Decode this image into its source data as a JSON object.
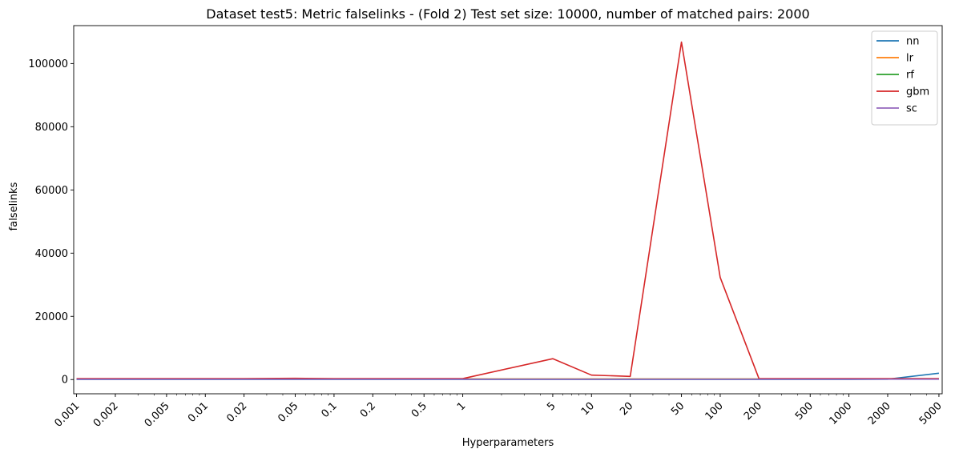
{
  "chart_data": {
    "type": "line",
    "title": "Dataset test5: Metric falselinks - (Fold 2) Test set size: 10000, number of matched pairs: 2000",
    "xlabel": "Hyperparameters",
    "ylabel": "falselinks",
    "x_scale": "log",
    "xlim": [
      0.00095,
      5300
    ],
    "ylim": [
      -4500,
      112000
    ],
    "x": [
      0.001,
      0.002,
      0.005,
      0.01,
      0.02,
      0.05,
      0.1,
      0.2,
      0.5,
      1,
      5,
      10,
      20,
      50,
      100,
      200,
      500,
      1000,
      2000,
      5000
    ],
    "x_tick_labels": [
      "0.001",
      "0.002",
      "0.005",
      "0.01",
      "0.02",
      "0.05",
      "0.1",
      "0.2",
      "0.5",
      "1",
      "5",
      "10",
      "20",
      "50",
      "100",
      "200",
      "500",
      "1000",
      "2000",
      "5000"
    ],
    "y_ticks": [
      0,
      20000,
      40000,
      60000,
      80000,
      100000
    ],
    "y_tick_labels": [
      "0",
      "20000",
      "40000",
      "60000",
      "80000",
      "100000"
    ],
    "legend_position": "top-right",
    "grid": false,
    "series": [
      {
        "name": "nn",
        "color": "#1f77b4",
        "values": [
          50,
          50,
          50,
          50,
          50,
          50,
          50,
          50,
          50,
          50,
          50,
          50,
          50,
          50,
          50,
          50,
          50,
          50,
          100,
          2000
        ]
      },
      {
        "name": "lr",
        "color": "#ff7f0e",
        "values": [
          200,
          200,
          200,
          200,
          200,
          200,
          200,
          200,
          200,
          200,
          200,
          200,
          200,
          200,
          200,
          200,
          200,
          200,
          200,
          200
        ]
      },
      {
        "name": "rf",
        "color": "#2ca02c",
        "values": [
          150,
          150,
          150,
          150,
          150,
          150,
          150,
          150,
          150,
          150,
          150,
          150,
          150,
          150,
          150,
          150,
          150,
          150,
          150,
          150
        ]
      },
      {
        "name": "gbm",
        "color": "#d62728",
        "values": [
          300,
          300,
          300,
          300,
          300,
          400,
          300,
          300,
          300,
          300,
          6600,
          1400,
          1000,
          106800,
          32300,
          300,
          300,
          300,
          300,
          300
        ]
      },
      {
        "name": "sc",
        "color": "#9467bd",
        "values": [
          100,
          100,
          100,
          100,
          100,
          100,
          100,
          100,
          100,
          100,
          100,
          100,
          100,
          100,
          100,
          100,
          100,
          100,
          100,
          100
        ]
      }
    ]
  }
}
